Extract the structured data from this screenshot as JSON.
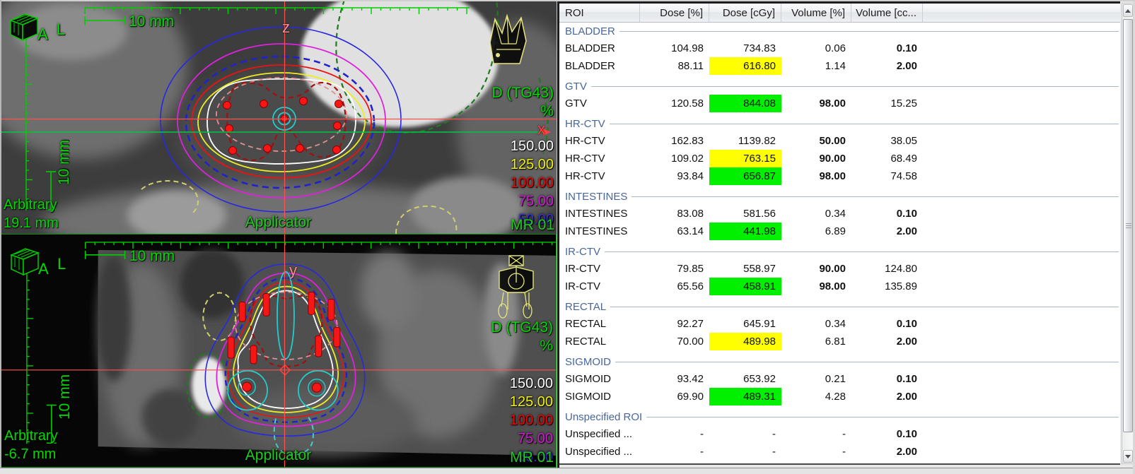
{
  "viewports": {
    "top": {
      "orientation_marker_a": "A",
      "orientation_marker_l": "L",
      "ruler_horizontal_label": "10 mm",
      "ruler_vertical_label": "10 mm",
      "plane_name": "Arbitrary",
      "slice_offset": "19.1 mm",
      "dose_display_label": "D (TG43)",
      "dose_display_unit": "%",
      "axis_vertical_label": "z",
      "axis_horizontal_label": "x",
      "applicator_label": "Applicator",
      "image_series_label": "MR 01",
      "isodose_legend": [
        {
          "value": "150.00",
          "color": "#ffffff"
        },
        {
          "value": "125.00",
          "color": "#f2f200"
        },
        {
          "value": "100.00",
          "color": "#f20000"
        },
        {
          "value": "75.00",
          "color": "#d816d8"
        },
        {
          "value": "50.00",
          "color": "#3333dd"
        }
      ]
    },
    "bottom": {
      "orientation_marker_a": "A",
      "orientation_marker_l": "L",
      "ruler_horizontal_label": "10 mm",
      "ruler_vertical_label": "10 mm",
      "plane_name": "Arbitrary",
      "slice_offset": "-6.7 mm",
      "dose_display_label": "D (TG43)",
      "dose_display_unit": "%",
      "axis_vertical_label": "y",
      "applicator_label": "Applicator",
      "image_series_label": "MR 01",
      "isodose_legend": [
        {
          "value": "150.00",
          "color": "#ffffff"
        },
        {
          "value": "125.00",
          "color": "#f2f200"
        },
        {
          "value": "100.00",
          "color": "#f20000"
        },
        {
          "value": "75.00",
          "color": "#d816d8"
        },
        {
          "value": "50.00",
          "color": "#3333dd"
        }
      ]
    }
  },
  "table": {
    "columns": [
      "ROI",
      "Dose [%]",
      "Dose [cGy]",
      "Volume [%]",
      "Volume [cc..."
    ],
    "sections": [
      {
        "label": "BLADDER",
        "rows": [
          {
            "cells": [
              "BLADDER",
              "104.98",
              "734.83",
              "0.06",
              "0.10"
            ],
            "highlight": null,
            "bold": [
              4
            ]
          },
          {
            "cells": [
              "BLADDER",
              "88.11",
              "616.80",
              "1.14",
              "2.00"
            ],
            "highlight": "yellow",
            "bold": [
              4
            ]
          }
        ]
      },
      {
        "label": "GTV",
        "rows": [
          {
            "cells": [
              "GTV",
              "120.58",
              "844.08",
              "98.00",
              "15.25"
            ],
            "highlight": "green",
            "bold": [
              3
            ]
          }
        ]
      },
      {
        "label": "HR-CTV",
        "rows": [
          {
            "cells": [
              "HR-CTV",
              "162.83",
              "1139.82",
              "50.00",
              "38.05"
            ],
            "highlight": null,
            "bold": [
              3
            ]
          },
          {
            "cells": [
              "HR-CTV",
              "109.02",
              "763.15",
              "90.00",
              "68.49"
            ],
            "highlight": "yellow",
            "bold": [
              3
            ]
          },
          {
            "cells": [
              "HR-CTV",
              "93.84",
              "656.87",
              "98.00",
              "74.58"
            ],
            "highlight": "green",
            "bold": [
              3
            ]
          }
        ]
      },
      {
        "label": "INTESTINES",
        "rows": [
          {
            "cells": [
              "INTESTINES",
              "83.08",
              "581.56",
              "0.34",
              "0.10"
            ],
            "highlight": null,
            "bold": [
              4
            ]
          },
          {
            "cells": [
              "INTESTINES",
              "63.14",
              "441.98",
              "6.89",
              "2.00"
            ],
            "highlight": "green",
            "bold": [
              4
            ]
          }
        ]
      },
      {
        "label": "IR-CTV",
        "rows": [
          {
            "cells": [
              "IR-CTV",
              "79.85",
              "558.97",
              "90.00",
              "124.80"
            ],
            "highlight": null,
            "bold": [
              3
            ]
          },
          {
            "cells": [
              "IR-CTV",
              "65.56",
              "458.91",
              "98.00",
              "135.89"
            ],
            "highlight": "green",
            "bold": [
              3
            ]
          }
        ]
      },
      {
        "label": "RECTAL",
        "rows": [
          {
            "cells": [
              "RECTAL",
              "92.27",
              "645.91",
              "0.34",
              "0.10"
            ],
            "highlight": null,
            "bold": [
              4
            ]
          },
          {
            "cells": [
              "RECTAL",
              "70.00",
              "489.98",
              "6.81",
              "2.00"
            ],
            "highlight": "yellow",
            "bold": [
              4
            ]
          }
        ]
      },
      {
        "label": "SIGMOID",
        "rows": [
          {
            "cells": [
              "SIGMOID",
              "93.42",
              "653.92",
              "0.21",
              "0.10"
            ],
            "highlight": null,
            "bold": [
              4
            ]
          },
          {
            "cells": [
              "SIGMOID",
              "69.90",
              "489.31",
              "4.28",
              "2.00"
            ],
            "highlight": "green",
            "bold": [
              4
            ]
          }
        ]
      },
      {
        "label": "Unspecified ROI",
        "rows": [
          {
            "cells": [
              "Unspecified ...",
              "-",
              "-",
              "-",
              "0.10"
            ],
            "highlight": null,
            "bold": [
              4
            ]
          },
          {
            "cells": [
              "Unspecified ...",
              "-",
              "-",
              "-",
              "2.00"
            ],
            "highlight": null,
            "bold": [
              4
            ]
          }
        ]
      }
    ]
  },
  "colors": {
    "highlight_yellow": "#ffff00",
    "highlight_green": "#00f000",
    "section_header_blue": "#46669c",
    "annotation_green": "#00d900",
    "crosshair_red": "#ff4d4d",
    "crosshair_green": "#00c84b",
    "applicator_icon_yellow": "#e6e67a",
    "isodose_150": "#ffffff",
    "isodose_125": "#f2f200",
    "isodose_100": "#f20000",
    "isodose_75": "#d816d8",
    "isodose_50": "#3333dd"
  }
}
